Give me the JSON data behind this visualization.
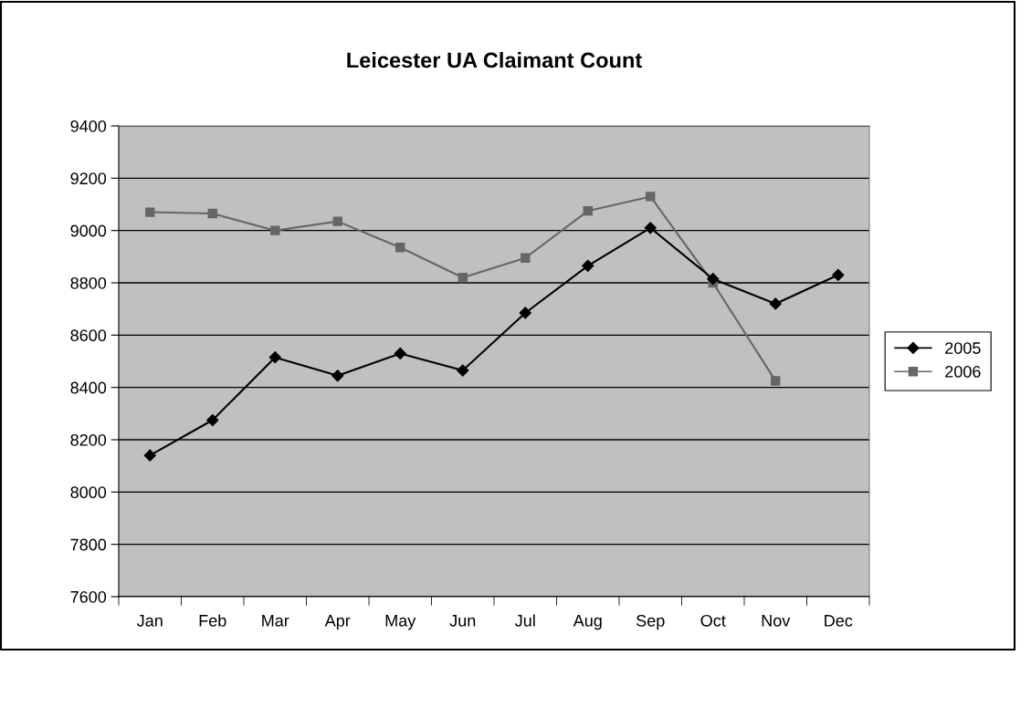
{
  "chart_data": {
    "type": "line",
    "title": "Leicester UA Claimant Count",
    "categories": [
      "Jan",
      "Feb",
      "Mar",
      "Apr",
      "May",
      "Jun",
      "Jul",
      "Aug",
      "Sep",
      "Oct",
      "Nov",
      "Dec"
    ],
    "series": [
      {
        "name": "2005",
        "color": "#000000",
        "marker": "diamond",
        "values": [
          8140,
          8275,
          8515,
          8445,
          8530,
          8465,
          8685,
          8865,
          9010,
          8815,
          8720,
          8830
        ]
      },
      {
        "name": "2006",
        "color": "#666666",
        "marker": "square",
        "values": [
          9070,
          9065,
          9000,
          9035,
          8935,
          8820,
          8895,
          9075,
          9130,
          8800,
          8425,
          null
        ]
      }
    ],
    "ylim": [
      7600,
      9400
    ],
    "yticks": [
      7600,
      7800,
      8000,
      8200,
      8400,
      8600,
      8800,
      9000,
      9200,
      9400
    ],
    "grid": "y",
    "legend": "right",
    "line_style": "solid"
  }
}
